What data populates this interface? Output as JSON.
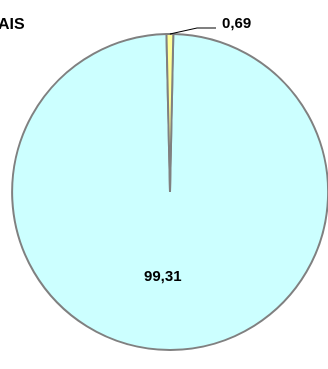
{
  "chart_data": {
    "type": "pie",
    "title": "AIS",
    "slices": [
      {
        "label": "99,31",
        "value": 99.31,
        "color": "#ccffff"
      },
      {
        "label": "0,69",
        "value": 0.69,
        "color": "#ffff99"
      }
    ]
  },
  "colors": {
    "slice_border": "#808080",
    "leader_line": "#000000"
  }
}
